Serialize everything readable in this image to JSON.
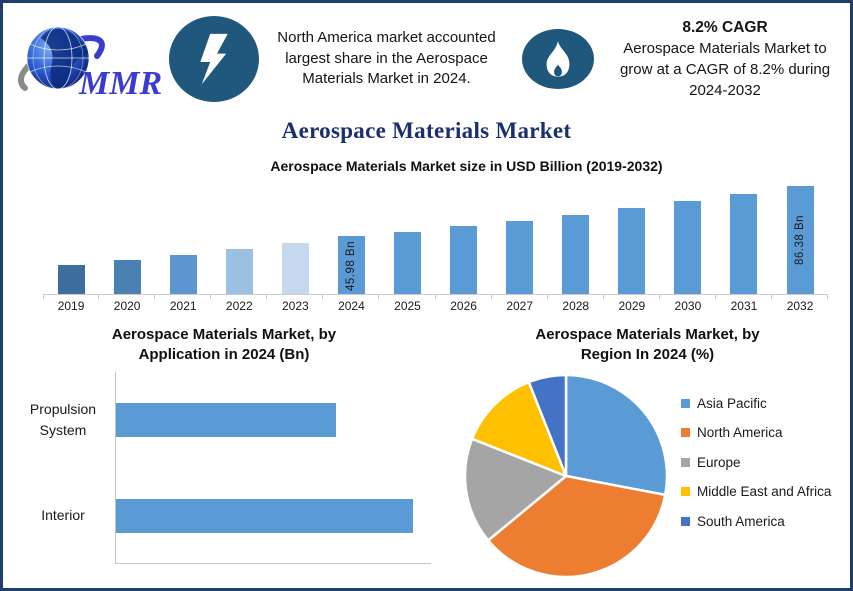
{
  "logo": {
    "text": "MMR"
  },
  "header": {
    "callout1": {
      "icon": "lightning-icon",
      "text": "North America market accounted largest share in the Aerospace Materials Market in 2024."
    },
    "callout2": {
      "icon": "flame-icon",
      "title": "8.2% CAGR",
      "text": "Aerospace Materials Market to grow at a CAGR of 8.2% during 2024-2032"
    }
  },
  "page_title": "Aerospace Materials Market",
  "colors": {
    "border_navy": "#1E3F66",
    "title_navy": "#1B2E6E",
    "icon_circle_blue": "#20587D",
    "primary_bar_blue": "#5B9BD5",
    "axis_gray": "#CCCCCC"
  },
  "chart_data": [
    {
      "type": "bar",
      "title": "Aerospace Materials Market size in USD Billion (2019-2032)",
      "categories": [
        "2019",
        "2020",
        "2021",
        "2022",
        "2023",
        "2024",
        "2025",
        "2026",
        "2027",
        "2028",
        "2029",
        "2030",
        "2031",
        "2032"
      ],
      "values": [
        23,
        27,
        31,
        35.5,
        41,
        45.98,
        49.75,
        53.83,
        58.24,
        63.02,
        68.19,
        73.78,
        79.83,
        86.38
      ],
      "bar_colors": [
        "#3E6E9E",
        "#4A80B2",
        "#5B96CF",
        "#9CC0E4",
        "#C5D8EE",
        "#5B9BD5",
        "#5B9BD5",
        "#5B9BD5",
        "#5B9BD5",
        "#5B9BD5",
        "#5B9BD5",
        "#5B9BD5",
        "#5B9BD5",
        "#5B9BD5"
      ],
      "data_labels": {
        "2024": "45.98 Bn",
        "2032": "86.38 Bn"
      },
      "label_pos": {
        "2024": "bottom",
        "2032": "center"
      },
      "xlabel": "",
      "ylabel": "",
      "ylim": [
        0,
        90
      ],
      "grid": false,
      "legend": false
    },
    {
      "type": "bar-horizontal",
      "title": "Aerospace Materials Market, by Application in 2024 (Bn)",
      "categories": [
        "Propulsion System",
        "Interior"
      ],
      "values": [
        15,
        20.2
      ],
      "bar_color": "#5B9BD5",
      "xlim": [
        0,
        22
      ],
      "grid": false,
      "legend": false
    },
    {
      "type": "pie",
      "title": "Aerospace Materials Market, by Region In 2024 (%)",
      "labels": [
        "Asia Pacific",
        "North America",
        "Europe",
        "Middle East and Africa",
        "South America"
      ],
      "values": [
        28,
        36,
        17,
        13,
        6
      ],
      "colors": [
        "#5B9BD5",
        "#ED7D31",
        "#A5A5A5",
        "#FFC000",
        "#4472C4"
      ],
      "legend_position": "right",
      "start_angle_deg": -90,
      "direction": "clockwise"
    }
  ]
}
